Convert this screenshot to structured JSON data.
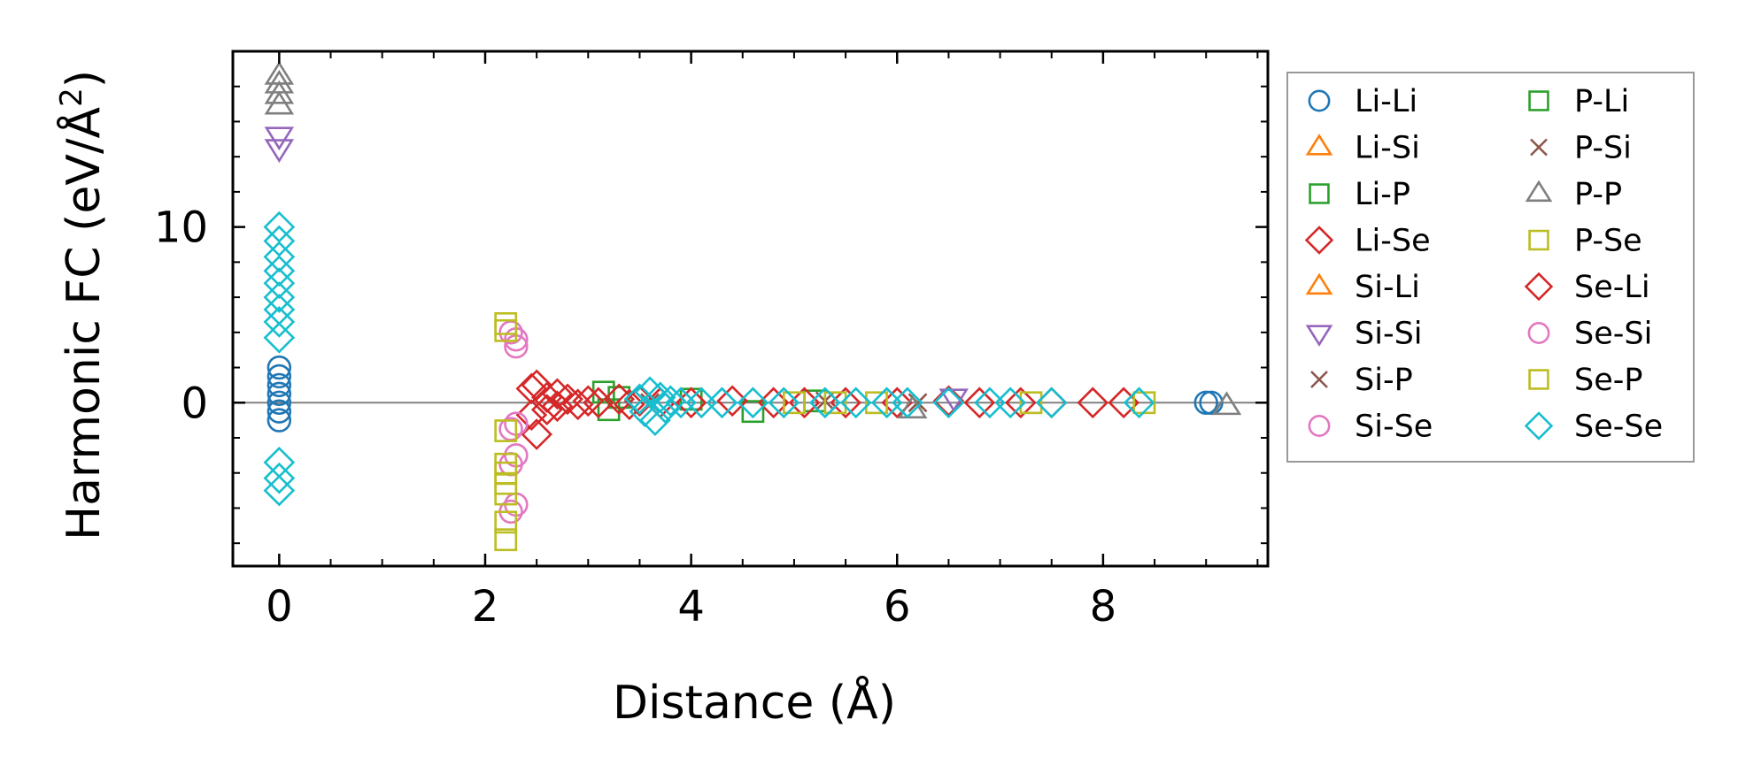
{
  "chart_data": {
    "type": "scatter",
    "xlabel": "Distance (Å)",
    "ylabel_main": "Harmonic FC (eV/Å",
    "ylabel_sup": "2",
    "ylabel_end": ")",
    "xlim": [
      -0.45,
      9.6
    ],
    "ylim": [
      -9.3,
      20
    ],
    "x_ticks": [
      0,
      2,
      4,
      6,
      8
    ],
    "x_tick_labels": [
      "0",
      "2",
      "4",
      "6",
      "8"
    ],
    "y_ticks": [
      0,
      10
    ],
    "y_tick_labels": [
      "0",
      "10"
    ],
    "zero_line": true,
    "grid": false,
    "legend_position": "outside-right",
    "series": [
      {
        "name": "Li-Li",
        "marker": "circle",
        "color": "#1f77b4",
        "points": [
          [
            0,
            -1.0
          ],
          [
            0,
            -0.5
          ],
          [
            0,
            0
          ],
          [
            0,
            0.5
          ],
          [
            0,
            1.0
          ],
          [
            0,
            1.5
          ],
          [
            0,
            2.0
          ],
          [
            9.0,
            0
          ],
          [
            9.05,
            0
          ]
        ]
      },
      {
        "name": "Li-Si",
        "marker": "triangle-up",
        "color": "#ff7f0e",
        "points": []
      },
      {
        "name": "Li-P",
        "marker": "square",
        "color": "#2ca02c",
        "points": [
          [
            3.15,
            0.6
          ],
          [
            3.2,
            -0.4
          ],
          [
            3.3,
            0.3
          ],
          [
            4.0,
            0.2
          ],
          [
            4.6,
            -0.5
          ],
          [
            5.2,
            0.1
          ]
        ]
      },
      {
        "name": "Li-Se",
        "marker": "diamond",
        "color": "#d62728",
        "points": [
          [
            2.45,
            0.8
          ],
          [
            2.45,
            -0.7
          ],
          [
            2.5,
            -1.8
          ],
          [
            2.5,
            1.0
          ],
          [
            2.6,
            0.3
          ],
          [
            2.6,
            -0.4
          ],
          [
            2.7,
            0.5
          ],
          [
            2.7,
            -0.2
          ],
          [
            2.8,
            0.2
          ],
          [
            2.9,
            -0.1
          ],
          [
            3.0,
            0.1
          ],
          [
            3.1,
            0
          ],
          [
            3.3,
            0.2
          ],
          [
            3.4,
            -0.1
          ],
          [
            3.5,
            0.1
          ],
          [
            3.7,
            0
          ],
          [
            4.0,
            0
          ],
          [
            4.4,
            0.1
          ],
          [
            4.8,
            0
          ],
          [
            5.1,
            0
          ],
          [
            5.5,
            0
          ],
          [
            6.0,
            0
          ],
          [
            6.5,
            0.1
          ],
          [
            6.8,
            0
          ],
          [
            7.2,
            0
          ],
          [
            7.5,
            0
          ],
          [
            7.9,
            0
          ],
          [
            8.2,
            0
          ]
        ]
      },
      {
        "name": "Si-Li",
        "marker": "triangle-up",
        "color": "#ff7f0e",
        "points": []
      },
      {
        "name": "Si-Si",
        "marker": "triangle-down",
        "color": "#9467bd",
        "points": [
          [
            0,
            14.5
          ],
          [
            0,
            15.2
          ],
          [
            6.55,
            0.3
          ]
        ]
      },
      {
        "name": "Si-P",
        "marker": "x",
        "color": "#8c564b",
        "points": [
          [
            3.6,
            0
          ],
          [
            5.3,
            0.1
          ],
          [
            6.2,
            0
          ]
        ]
      },
      {
        "name": "Si-Se",
        "marker": "circle",
        "color": "#e377c2",
        "points": [
          [
            2.25,
            4.0
          ],
          [
            2.3,
            3.6
          ],
          [
            2.3,
            3.2
          ],
          [
            2.25,
            -1.5
          ],
          [
            2.3,
            -1.2
          ],
          [
            2.3,
            -3.0
          ],
          [
            2.25,
            -3.5
          ],
          [
            2.3,
            -5.8
          ],
          [
            2.25,
            -6.2
          ]
        ]
      },
      {
        "name": "P-Li",
        "marker": "square",
        "color": "#2ca02c",
        "points": []
      },
      {
        "name": "P-Si",
        "marker": "x",
        "color": "#8c564b",
        "points": []
      },
      {
        "name": "P-P",
        "marker": "triangle-up",
        "color": "#7f7f7f",
        "points": [
          [
            0,
            16.9
          ],
          [
            0,
            17.5
          ],
          [
            0,
            18.1
          ],
          [
            0,
            18.6
          ],
          [
            6.15,
            -0.4
          ],
          [
            9.2,
            -0.2
          ]
        ]
      },
      {
        "name": "P-Se",
        "marker": "square",
        "color": "#bcbd22",
        "points": [
          [
            2.2,
            4.5
          ],
          [
            2.2,
            4.1
          ],
          [
            2.2,
            -1.6
          ],
          [
            2.2,
            -3.5
          ],
          [
            2.2,
            -4.0
          ],
          [
            2.2,
            -4.6
          ],
          [
            2.2,
            -5.2
          ],
          [
            2.2,
            -6.8
          ],
          [
            2.2,
            -7.8
          ],
          [
            5.0,
            0
          ],
          [
            5.4,
            0
          ],
          [
            5.8,
            0
          ],
          [
            7.3,
            0
          ],
          [
            8.4,
            0
          ]
        ]
      },
      {
        "name": "Se-Li",
        "marker": "diamond",
        "color": "#d62728",
        "points": []
      },
      {
        "name": "Se-Si",
        "marker": "circle",
        "color": "#e377c2",
        "points": []
      },
      {
        "name": "Se-P",
        "marker": "square",
        "color": "#bcbd22",
        "points": []
      },
      {
        "name": "Se-Se",
        "marker": "diamond",
        "color": "#17becf",
        "points": [
          [
            0,
            10.0
          ],
          [
            0,
            9.2
          ],
          [
            0,
            8.3
          ],
          [
            0,
            7.5
          ],
          [
            0,
            6.8
          ],
          [
            0,
            6.0
          ],
          [
            0,
            5.3
          ],
          [
            0,
            4.6
          ],
          [
            0,
            3.7
          ],
          [
            0,
            -3.4
          ],
          [
            0,
            -4.3
          ],
          [
            0,
            -5.0
          ],
          [
            3.5,
            0.2
          ],
          [
            3.55,
            -0.5
          ],
          [
            3.6,
            0.6
          ],
          [
            3.65,
            -1.0
          ],
          [
            3.7,
            0.3
          ],
          [
            3.75,
            -0.3
          ],
          [
            3.8,
            0.1
          ],
          [
            3.9,
            0
          ],
          [
            4.1,
            0
          ],
          [
            4.3,
            0
          ],
          [
            4.6,
            0
          ],
          [
            4.9,
            0
          ],
          [
            5.3,
            0
          ],
          [
            5.6,
            0
          ],
          [
            5.9,
            0
          ],
          [
            6.1,
            0
          ],
          [
            6.5,
            0
          ],
          [
            6.9,
            0
          ],
          [
            7.1,
            0
          ],
          [
            7.5,
            0
          ],
          [
            8.35,
            0
          ]
        ]
      }
    ]
  }
}
